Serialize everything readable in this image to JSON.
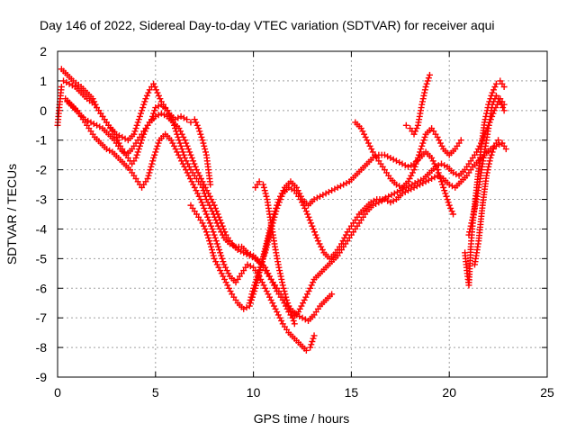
{
  "chart_data": {
    "type": "scatter",
    "title": "Day 146 of 2022, Sidereal Day-to-day VTEC variation (SDTVAR) for receiver aqui",
    "xlabel": "GPS time / hours",
    "ylabel": "SDTVAR / TECUs",
    "xlim": [
      0,
      25
    ],
    "ylim": [
      -9,
      2
    ],
    "xticks": [
      "0",
      "5",
      "10",
      "15",
      "20",
      "25"
    ],
    "yticks": [
      "2",
      "1",
      "0",
      "-1",
      "-2",
      "-3",
      "-4",
      "-5",
      "-6",
      "-7",
      "-8",
      "-9"
    ],
    "grid": true,
    "marker": "plus",
    "series_color": "#ff0000",
    "series": [
      {
        "x": [
          0.0,
          0.1,
          0.2
        ],
        "y": [
          -0.5,
          0.2,
          0.8
        ]
      },
      {
        "x": [
          0.2,
          0.5,
          0.8,
          1.2,
          1.5,
          1.8,
          2.0,
          2.3,
          2.6,
          3.0,
          3.3,
          3.6,
          3.9,
          4.1,
          4.3,
          4.5,
          4.7,
          4.9,
          5.1,
          5.3,
          5.5,
          5.7,
          6.0,
          6.3,
          6.6,
          6.8,
          7.0,
          7.2,
          7.4,
          7.6,
          7.7,
          7.8
        ],
        "y": [
          1.4,
          1.2,
          1.0,
          0.8,
          0.6,
          0.4,
          0.1,
          -0.2,
          -0.5,
          -0.8,
          -0.9,
          -1.0,
          -0.8,
          -0.4,
          0.0,
          0.4,
          0.7,
          0.9,
          0.6,
          0.3,
          0.1,
          -0.1,
          -0.3,
          -0.2,
          -0.3,
          -0.4,
          -0.3,
          -0.6,
          -1.0,
          -1.5,
          -2.0,
          -2.5
        ]
      },
      {
        "x": [
          0.3,
          0.6,
          0.9,
          1.2,
          1.5,
          1.9,
          2.2,
          2.5,
          2.8,
          3.0,
          3.2,
          3.5,
          3.8,
          4.0,
          4.2,
          4.4,
          4.6,
          4.8,
          5.0,
          5.3,
          5.6,
          5.9,
          6.2,
          6.5,
          6.8,
          7.1,
          7.4,
          7.6,
          7.9,
          8.2,
          8.5,
          8.8,
          9.1,
          9.4,
          9.7,
          10.0,
          10.3,
          10.6,
          10.9,
          11.2,
          11.5,
          11.8,
          12.0,
          12.3,
          12.6,
          12.9,
          13.1,
          13.4,
          13.7,
          14.0,
          14.3,
          14.6,
          14.9,
          15.2,
          15.5,
          15.8,
          16.1,
          16.4,
          16.7,
          17.0,
          17.3,
          17.6,
          17.9,
          18.2,
          18.5,
          18.8,
          19.1,
          19.4,
          19.7,
          20.0,
          20.3,
          20.6,
          20.9,
          21.2,
          21.5,
          21.8,
          22.1,
          22.4,
          22.7
        ],
        "y": [
          1.0,
          0.9,
          0.8,
          0.6,
          0.4,
          0.2,
          -0.1,
          -0.4,
          -0.7,
          -0.9,
          -1.2,
          -1.5,
          -1.8,
          -1.6,
          -1.2,
          -0.8,
          -0.5,
          -0.3,
          0.1,
          0.2,
          0.0,
          -0.4,
          -1.0,
          -1.6,
          -2.0,
          -2.3,
          -2.6,
          -3.0,
          -3.4,
          -3.9,
          -4.3,
          -4.5,
          -4.6,
          -4.6,
          -4.8,
          -4.9,
          -5.1,
          -5.3,
          -5.7,
          -6.1,
          -6.4,
          -6.8,
          -7.0,
          -6.8,
          -6.4,
          -6.0,
          -5.7,
          -5.5,
          -5.3,
          -5.1,
          -4.9,
          -4.6,
          -4.3,
          -4.0,
          -3.7,
          -3.4,
          -3.2,
          -3.1,
          -3.0,
          -3.1,
          -3.0,
          -2.8,
          -2.7,
          -2.6,
          -2.5,
          -2.4,
          -2.3,
          -2.2,
          -2.3,
          -2.5,
          -2.6,
          -2.4,
          -2.2,
          -1.9,
          -1.7,
          -1.5,
          -1.3,
          -1.2,
          -1.1
        ]
      },
      {
        "x": [
          0.5,
          0.8,
          1.1,
          1.4,
          1.7,
          2.0,
          2.3,
          2.6,
          2.9,
          3.2,
          3.5,
          3.8,
          4.1,
          4.4,
          4.7,
          5.0,
          5.3,
          5.6,
          5.9,
          6.2,
          6.5,
          6.8,
          7.1,
          7.4,
          7.7,
          8.0,
          8.3,
          8.6,
          8.9,
          9.2,
          9.5,
          9.8,
          10.1,
          10.4,
          10.7,
          11.0,
          11.3,
          11.6,
          11.9,
          12.2,
          12.5,
          12.8,
          13.1,
          13.4,
          13.7,
          14.0
        ],
        "y": [
          0.3,
          0.1,
          -0.1,
          -0.3,
          -0.4,
          -0.5,
          -0.6,
          -0.8,
          -1.0,
          -1.3,
          -1.5,
          -1.3,
          -1.0,
          -0.7,
          -0.4,
          -0.2,
          -0.1,
          -0.2,
          -0.4,
          -0.6,
          -1.0,
          -1.5,
          -2.0,
          -2.4,
          -2.8,
          -3.2,
          -3.7,
          -4.2,
          -4.5,
          -4.7,
          -4.8,
          -4.9,
          -5.0,
          -5.2,
          -5.5,
          -5.8,
          -6.1,
          -6.4,
          -6.7,
          -6.9,
          -7.0,
          -7.1,
          -6.9,
          -6.6,
          -6.4,
          -6.2
        ]
      },
      {
        "x": [
          0.4,
          0.7,
          1.0,
          1.3,
          1.6,
          1.9,
          2.2,
          2.5,
          2.8,
          3.1,
          3.4,
          3.7,
          4.0,
          4.3,
          4.6,
          4.9,
          5.2,
          5.5,
          5.8,
          6.1,
          6.4,
          6.7,
          7.0,
          7.3,
          7.6,
          7.9,
          8.2,
          8.5,
          8.8,
          9.1,
          9.4,
          9.7,
          10.0,
          10.3,
          10.6,
          10.9,
          11.2,
          11.5,
          11.8,
          12.1,
          12.4,
          12.7,
          12.9,
          13.1
        ],
        "y": [
          0.4,
          0.2,
          0.0,
          -0.3,
          -0.6,
          -0.9,
          -1.1,
          -1.3,
          -1.4,
          -1.6,
          -1.8,
          -2.0,
          -2.3,
          -2.6,
          -2.3,
          -1.6,
          -1.0,
          -0.8,
          -1.0,
          -1.4,
          -1.8,
          -2.2,
          -2.6,
          -3.0,
          -3.5,
          -4.0,
          -4.6,
          -5.2,
          -5.6,
          -5.8,
          -5.5,
          -5.2,
          -5.3,
          -5.6,
          -6.0,
          -6.4,
          -6.8,
          -7.2,
          -7.5,
          -7.7,
          -7.9,
          -8.1,
          -8.0,
          -7.6
        ]
      },
      {
        "x": [
          6.8,
          7.0,
          7.2,
          7.4,
          7.6,
          7.8,
          8.0,
          8.3,
          8.6,
          8.9,
          9.2,
          9.5,
          9.8,
          10.1,
          10.4,
          10.7,
          11.0,
          11.3,
          11.6,
          11.9,
          12.2,
          12.5,
          12.8,
          13.1,
          13.4,
          13.7,
          14.0,
          14.3,
          14.6,
          14.9,
          15.2,
          15.5,
          15.8,
          16.1,
          16.4,
          16.7,
          17.0,
          17.3,
          17.6,
          17.9,
          18.2,
          18.5,
          18.8,
          19.1,
          19.4,
          19.7,
          20.0,
          20.2
        ],
        "y": [
          -3.2,
          -3.4,
          -3.6,
          -3.8,
          -4.1,
          -4.5,
          -5.0,
          -5.4,
          -5.8,
          -6.2,
          -6.5,
          -6.7,
          -6.6,
          -6.0,
          -5.2,
          -4.4,
          -3.6,
          -3.0,
          -2.6,
          -2.4,
          -2.6,
          -3.0,
          -3.2,
          -3.0,
          -2.9,
          -2.8,
          -2.7,
          -2.6,
          -2.5,
          -2.4,
          -2.2,
          -2.0,
          -1.8,
          -1.6,
          -1.5,
          -1.5,
          -1.6,
          -1.7,
          -1.8,
          -1.9,
          -1.8,
          -1.6,
          -1.4,
          -1.6,
          -2.0,
          -2.6,
          -3.2,
          -3.5
        ]
      },
      {
        "x": [
          9.8,
          10.0,
          10.3,
          10.6,
          10.9,
          11.2,
          11.5,
          11.8,
          12.1,
          12.4,
          12.7,
          13.0,
          13.3,
          13.6,
          13.9,
          14.2,
          14.5,
          14.8,
          15.1,
          15.4,
          15.7,
          16.0,
          16.3,
          16.6,
          16.9,
          17.2,
          17.5,
          17.8,
          18.1,
          18.4,
          18.7,
          19.0,
          19.3,
          19.6,
          19.9,
          20.2,
          20.5,
          20.8,
          21.1,
          21.4,
          21.7,
          22.0,
          22.3,
          22.6,
          22.8
        ],
        "y": [
          -6.5,
          -6.0,
          -5.4,
          -4.8,
          -4.0,
          -3.3,
          -2.8,
          -2.6,
          -2.7,
          -3.0,
          -3.4,
          -3.9,
          -4.4,
          -4.8,
          -5.0,
          -4.8,
          -4.5,
          -4.1,
          -3.8,
          -3.5,
          -3.3,
          -3.1,
          -3.0,
          -3.0,
          -2.9,
          -2.8,
          -2.7,
          -2.6,
          -2.5,
          -2.4,
          -2.3,
          -2.1,
          -1.9,
          -1.8,
          -1.9,
          -2.1,
          -2.2,
          -2.0,
          -1.7,
          -1.4,
          -1.0,
          -0.5,
          0.0,
          0.4,
          0.2
        ]
      },
      {
        "x": [
          10.1,
          10.3,
          10.5,
          10.7,
          10.9,
          11.1,
          11.3,
          11.5,
          11.7,
          11.9,
          12.1
        ],
        "y": [
          -2.6,
          -2.4,
          -2.5,
          -3.0,
          -3.8,
          -4.6,
          -5.3,
          -5.9,
          -6.4,
          -6.8,
          -7.2
        ]
      },
      {
        "x": [
          15.2,
          15.5,
          15.8,
          16.1,
          16.4,
          16.7,
          17.0,
          17.3,
          17.6,
          17.9,
          18.2,
          18.5,
          18.8,
          19.1,
          19.4,
          19.7,
          20.0,
          20.3,
          20.6
        ],
        "y": [
          -0.4,
          -0.6,
          -1.0,
          -1.4,
          -1.7,
          -2.0,
          -2.3,
          -2.5,
          -2.6,
          -2.4,
          -2.0,
          -1.4,
          -0.8,
          -0.6,
          -0.9,
          -1.3,
          -1.5,
          -1.3,
          -1.0
        ]
      },
      {
        "x": [
          17.8,
          18.0,
          18.2,
          18.4,
          18.6,
          18.8,
          19.0
        ],
        "y": [
          -0.5,
          -0.6,
          -0.8,
          -0.5,
          0.2,
          0.8,
          1.2
        ]
      },
      {
        "x": [
          20.8,
          20.9,
          21.0,
          21.1,
          21.2,
          21.4,
          21.6,
          21.8,
          22.0,
          22.2,
          22.4,
          22.6,
          22.8
        ],
        "y": [
          -4.8,
          -5.4,
          -5.9,
          -4.6,
          -3.8,
          -2.6,
          -1.4,
          -0.4,
          0.2,
          0.6,
          0.9,
          1.0,
          0.8
        ]
      },
      {
        "x": [
          21.0,
          21.2,
          21.4,
          21.6,
          21.8,
          22.0,
          22.2,
          22.4,
          22.6,
          22.8
        ],
        "y": [
          -4.2,
          -3.6,
          -3.0,
          -2.2,
          -1.4,
          -0.6,
          0.2,
          0.5,
          0.3,
          0.0
        ]
      },
      {
        "x": [
          21.3,
          21.5,
          21.7,
          21.9,
          22.1,
          22.3,
          22.5,
          22.7,
          22.9
        ],
        "y": [
          -5.2,
          -4.4,
          -3.2,
          -2.2,
          -1.6,
          -1.2,
          -1.0,
          -1.1,
          -1.3
        ]
      }
    ]
  }
}
